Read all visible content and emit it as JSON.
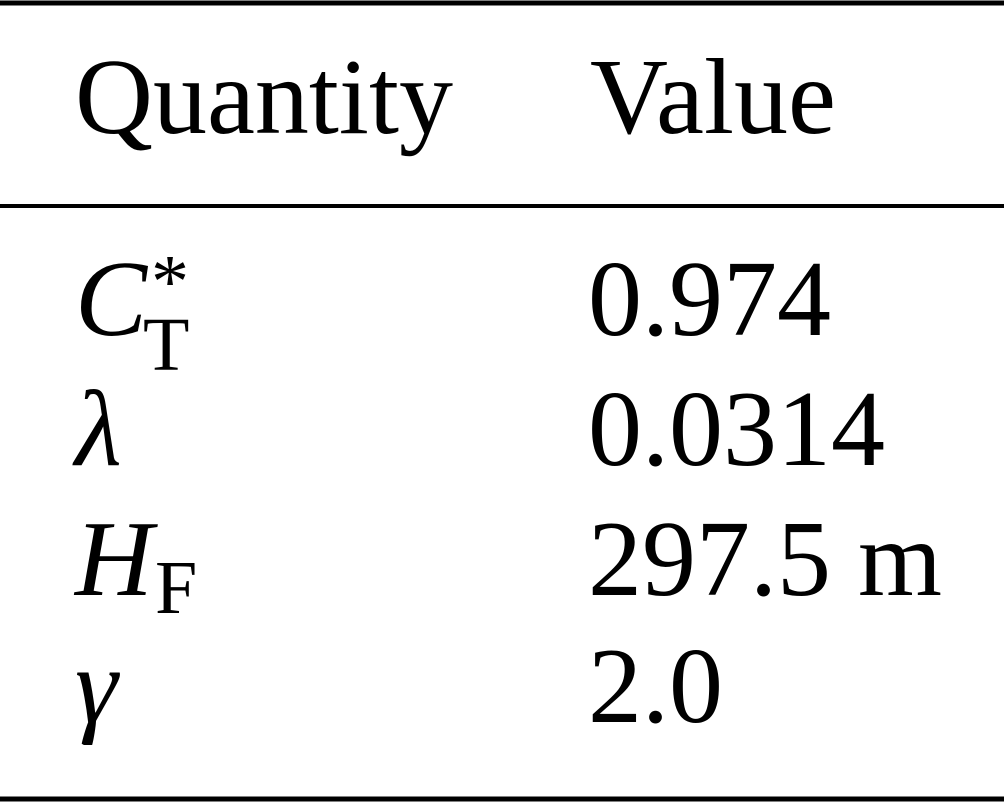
{
  "table": {
    "columns": [
      "Quantity",
      "Value"
    ],
    "rows": [
      {
        "quantity": {
          "base": "C",
          "sup": "*",
          "sub": "T"
        },
        "value": "0.974"
      },
      {
        "quantity": {
          "base": "λ"
        },
        "value": "0.0314"
      },
      {
        "quantity": {
          "base": "H",
          "sub": "F"
        },
        "value": "297.5 m"
      },
      {
        "quantity": {
          "base": "γ"
        },
        "value": "2.0"
      }
    ]
  }
}
